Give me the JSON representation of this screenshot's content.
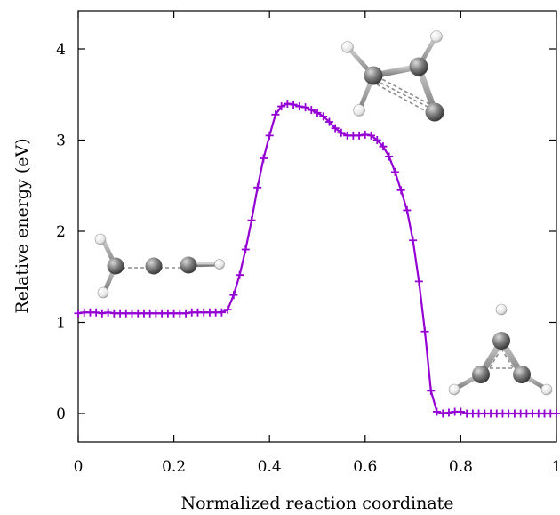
{
  "chart_data": {
    "type": "line",
    "title": "",
    "xlabel": "Normalized reaction coordinate",
    "ylabel": "Relative energy (eV)",
    "xlim": [
      0,
      1
    ],
    "ylim": [
      -0.3,
      4.3
    ],
    "x_ticks": [
      0,
      0.2,
      0.4,
      0.6,
      0.8,
      1
    ],
    "x_tick_labels": [
      "0",
      "0.2",
      "0.4",
      "0.6",
      "0.8",
      "1"
    ],
    "y_ticks": [
      0,
      1,
      2,
      3,
      4
    ],
    "y_tick_labels": [
      "0",
      "1",
      "2",
      "3",
      "4"
    ],
    "grid": false,
    "legend": "none",
    "series": [
      {
        "color": "#9400d3",
        "marker": "plus",
        "x": [
          0,
          0.0125,
          0.025,
          0.0375,
          0.05,
          0.0625,
          0.075,
          0.0875,
          0.1,
          0.1125,
          0.125,
          0.1375,
          0.15,
          0.1625,
          0.175,
          0.1875,
          0.2,
          0.2125,
          0.225,
          0.2375,
          0.25,
          0.2625,
          0.275,
          0.2875,
          0.3,
          0.3125,
          0.325,
          0.3375,
          0.35,
          0.3625,
          0.375,
          0.3875,
          0.4,
          0.4125,
          0.425,
          0.4375,
          0.45,
          0.4625,
          0.475,
          0.4875,
          0.5,
          0.5125,
          0.525,
          0.5375,
          0.55,
          0.5625,
          0.575,
          0.5875,
          0.6,
          0.6125,
          0.625,
          0.6375,
          0.65,
          0.6625,
          0.675,
          0.6875,
          0.7,
          0.7125,
          0.725,
          0.7375,
          0.75,
          0.7625,
          0.775,
          0.7875,
          0.8,
          0.8125,
          0.825,
          0.8375,
          0.85,
          0.8625,
          0.875,
          0.8875,
          0.9,
          0.9125,
          0.925,
          0.9375,
          0.95,
          0.9625,
          0.975,
          0.9875,
          1
        ],
        "y": [
          1.1,
          1.11,
          1.11,
          1.11,
          1.1,
          1.11,
          1.1,
          1.1,
          1.1,
          1.1,
          1.1,
          1.1,
          1.1,
          1.1,
          1.1,
          1.1,
          1.1,
          1.1,
          1.1,
          1.11,
          1.11,
          1.11,
          1.11,
          1.11,
          1.11,
          1.14,
          1.3,
          1.52,
          1.8,
          2.12,
          2.48,
          2.8,
          3.05,
          3.28,
          3.37,
          3.4,
          3.39,
          3.37,
          3.36,
          3.33,
          3.3,
          3.26,
          3.2,
          3.13,
          3.08,
          3.05,
          3.05,
          3.05,
          3.06,
          3.05,
          3.0,
          2.93,
          2.82,
          2.65,
          2.45,
          2.23,
          1.9,
          1.45,
          0.9,
          0.25,
          0.02,
          0.0,
          0.01,
          0.02,
          0.02,
          0.0,
          0.0,
          0.0,
          0.0,
          0.0,
          0.0,
          0.0,
          0.0,
          0.0,
          0.0,
          0.0,
          0.0,
          0.0,
          0.0,
          0.0,
          0.0
        ]
      }
    ]
  },
  "molecules": [
    {
      "name": "vinylidene"
    },
    {
      "name": "transition-state"
    },
    {
      "name": "cyclopropenylidene"
    }
  ]
}
